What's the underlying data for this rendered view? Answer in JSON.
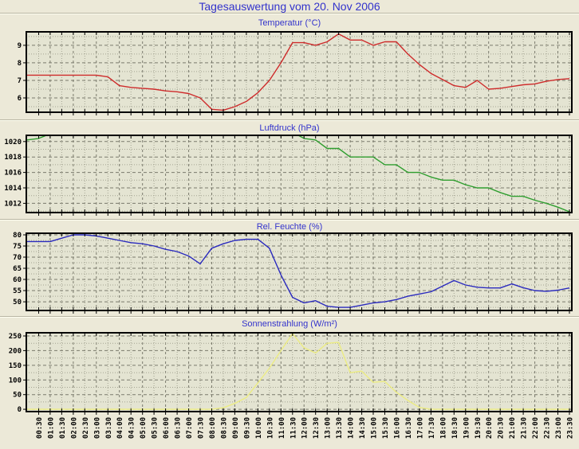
{
  "page": {
    "title": "Tagesauswertung vom 20. Nov 2006"
  },
  "colors": {
    "page_bg": "#ECE9D8",
    "plot_bg": "#E4E4D2",
    "title_text": "#3333CC",
    "axis_text": "#000000",
    "frame": "#000000",
    "grid_major": "#7A7A6C",
    "grid_minor": "#A4A492",
    "temperature_line": "#CE2B2B",
    "pressure_line": "#2F9E2F",
    "humidity_line": "#2A2ABE",
    "solar_line": "#ECEC82"
  },
  "x_axis": {
    "first_point": "00:00",
    "step_minutes": 30,
    "tick_labels": [
      "00:30",
      "01:00",
      "01:30",
      "02:00",
      "02:30",
      "03:00",
      "03:30",
      "04:00",
      "04:30",
      "05:00",
      "05:30",
      "06:00",
      "06:30",
      "07:00",
      "07:30",
      "08:00",
      "08:30",
      "09:00",
      "09:30",
      "10:00",
      "10:30",
      "11:00",
      "11:30",
      "12:00",
      "12:30",
      "13:00",
      "13:30",
      "14:00",
      "14:30",
      "15:00",
      "15:30",
      "16:00",
      "16:30",
      "17:00",
      "17:30",
      "18:00",
      "18:30",
      "19:00",
      "19:30",
      "20:00",
      "20:30",
      "21:00",
      "21:30",
      "22:00",
      "22:30",
      "23:00",
      "23:30"
    ]
  },
  "chart_data": [
    {
      "type": "line",
      "title": "Temperatur (°C)",
      "color_key": "temperature_line",
      "yticks": [
        6,
        7,
        8,
        9
      ],
      "ylim": [
        5.18,
        9.77
      ],
      "grid": "dashed-major, dotted-minor",
      "legend": "none",
      "values": [
        7.3,
        7.3,
        7.3,
        7.3,
        7.3,
        7.3,
        7.3,
        7.2,
        6.7,
        6.6,
        6.55,
        6.5,
        6.4,
        6.35,
        6.25,
        6.0,
        5.35,
        5.3,
        5.5,
        5.8,
        6.3,
        7.0,
        8.0,
        9.15,
        9.15,
        9.0,
        9.2,
        9.65,
        9.3,
        9.3,
        9.0,
        9.2,
        9.2,
        8.5,
        7.9,
        7.4,
        7.05,
        6.7,
        6.6,
        7.0,
        6.5,
        6.55,
        6.65,
        6.75,
        6.8,
        6.95,
        7.05,
        7.1
      ]
    },
    {
      "type": "line",
      "title": "Luftdruck (hPa)",
      "color_key": "pressure_line",
      "yticks": [
        1012,
        1014,
        1016,
        1018,
        1020
      ],
      "ylim": [
        1010.8,
        1020.8
      ],
      "grid": "dashed-major, dotted-minor",
      "legend": "none",
      "note": "values above 1020.8 are clipped by the fixed axis range",
      "values": [
        1020.2,
        1020.4,
        1021.0,
        1021.5,
        1021.5,
        1021.5,
        1021.5,
        1021.5,
        1021.5,
        1021.5,
        1021.5,
        1021.5,
        1021.5,
        1021.5,
        1021.5,
        1021.5,
        1021.5,
        1021.5,
        1021.5,
        1021.5,
        1021.5,
        1021.5,
        1021.5,
        1021.2,
        1020.4,
        1020.2,
        1019.1,
        1019.1,
        1018.0,
        1018.0,
        1018.0,
        1017.0,
        1017.0,
        1016.0,
        1016.0,
        1015.4,
        1015.0,
        1015.0,
        1014.4,
        1014.0,
        1014.0,
        1013.4,
        1012.9,
        1012.9,
        1012.4,
        1012.0,
        1011.5,
        1010.9
      ]
    },
    {
      "type": "line",
      "title": "Rel. Feuchte (%)",
      "color_key": "humidity_line",
      "yticks": [
        50,
        55,
        60,
        65,
        70,
        75,
        80
      ],
      "ylim": [
        46.1,
        80.7
      ],
      "grid": "dashed-major, dotted-minor",
      "legend": "none",
      "values": [
        77,
        77,
        77,
        78.5,
        80,
        80,
        79.5,
        78.5,
        77.5,
        76.5,
        76,
        75,
        73.5,
        72.5,
        70.5,
        67,
        74,
        76,
        77.5,
        78,
        78,
        74,
        62,
        52,
        49.5,
        50.5,
        48,
        47.5,
        47.5,
        48.5,
        49.5,
        50,
        51,
        52.5,
        53.5,
        54.5,
        57,
        59.5,
        57.5,
        56.5,
        56.2,
        56.2,
        58,
        56.3,
        55,
        54.7,
        55.2,
        56.2
      ]
    },
    {
      "type": "line",
      "title": "Sonnenstrahlung (W/m²)",
      "color_key": "solar_line",
      "yticks": [
        0,
        50,
        100,
        150,
        200,
        250
      ],
      "ylim": [
        -8,
        261
      ],
      "grid": "dashed-major, dotted-minor",
      "legend": "none",
      "values": [
        0,
        0,
        0,
        0,
        0,
        0,
        0,
        0,
        0,
        0,
        0,
        0,
        0,
        0,
        0,
        0,
        0,
        5,
        20,
        40,
        90,
        140,
        200,
        258,
        210,
        192,
        225,
        228,
        125,
        130,
        92,
        95,
        58,
        30,
        6,
        0,
        0,
        0,
        0,
        0,
        0,
        0,
        0,
        0,
        0,
        0,
        0,
        0
      ]
    }
  ]
}
